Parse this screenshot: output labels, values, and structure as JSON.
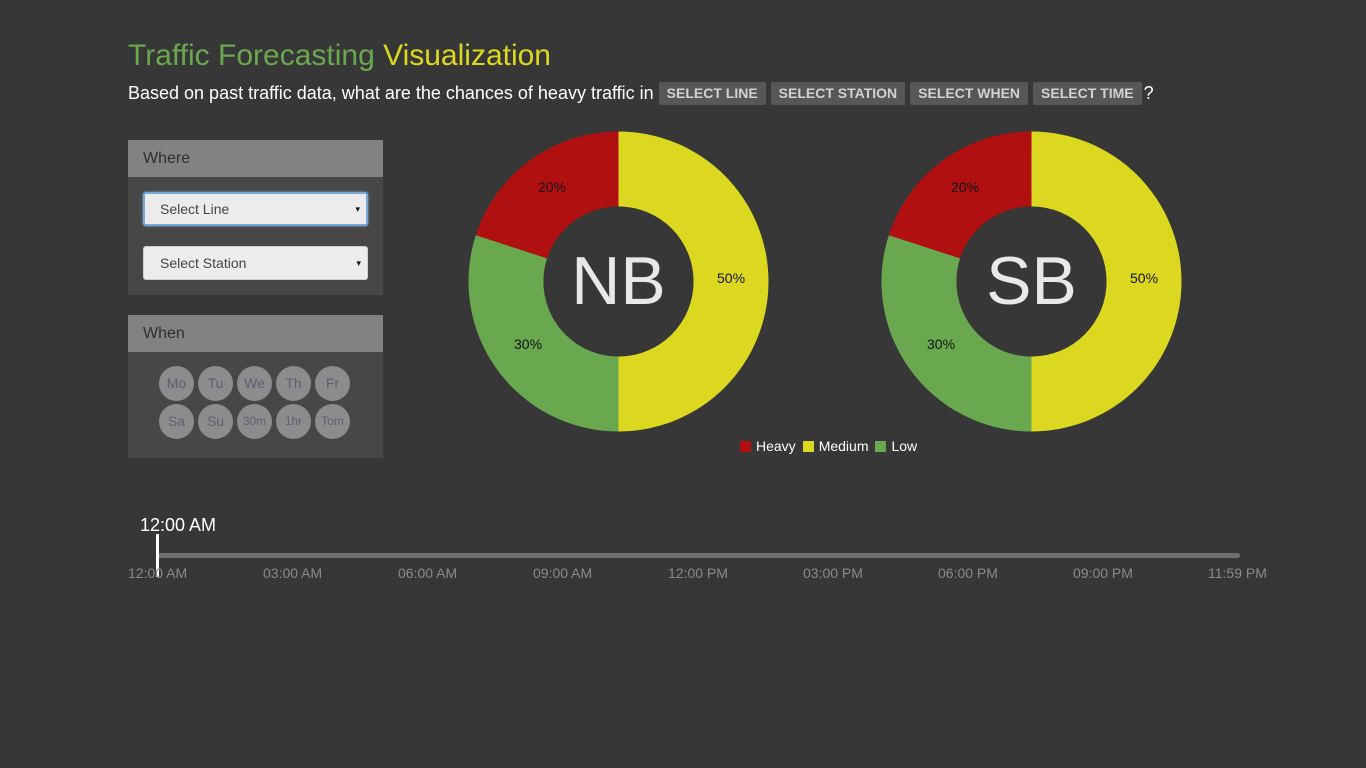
{
  "header": {
    "title_part1": "Traffic Forecasting",
    "title_part2": "Visualization",
    "question_text": "Based on past traffic data, what are the chances of heavy traffic in",
    "pills": [
      "SELECT LINE",
      "SELECT STATION",
      "SELECT WHEN",
      "SELECT TIME"
    ],
    "question_end": "?"
  },
  "where_panel": {
    "heading": "Where",
    "line_select": "Select Line",
    "station_select": "Select Station",
    "caret": "▾"
  },
  "when_panel": {
    "heading": "When",
    "row1": [
      "Mo",
      "Tu",
      "We",
      "Th",
      "Fr"
    ],
    "row2": [
      "Sa",
      "Su",
      "30m",
      "1hr",
      "Tom"
    ]
  },
  "chart_data": [
    {
      "type": "pie",
      "center_label": "NB",
      "categories": [
        "Heavy",
        "Medium",
        "Low"
      ],
      "values": [
        20,
        50,
        30
      ],
      "labels": [
        "20%",
        "50%",
        "30%"
      ]
    },
    {
      "type": "pie",
      "center_label": "SB",
      "categories": [
        "Heavy",
        "Medium",
        "Low"
      ],
      "values": [
        20,
        50,
        30
      ],
      "labels": [
        "20%",
        "50%",
        "30%"
      ]
    }
  ],
  "legend": [
    {
      "label": "Heavy",
      "color": "#b11010"
    },
    {
      "label": "Medium",
      "color": "#dcd820"
    },
    {
      "label": "Low",
      "color": "#6aa84f"
    }
  ],
  "timeline": {
    "current": "12:00 AM",
    "ticks": [
      "12:00 AM",
      "03:00 AM",
      "06:00 AM",
      "09:00 AM",
      "12:00 PM",
      "03:00 PM",
      "06:00 PM",
      "09:00 PM",
      "11:59 PM"
    ],
    "position_fraction": 0
  },
  "colors": {
    "heavy": "#b11010",
    "medium": "#dcd820",
    "low": "#6aa84f",
    "background": "#373737"
  }
}
